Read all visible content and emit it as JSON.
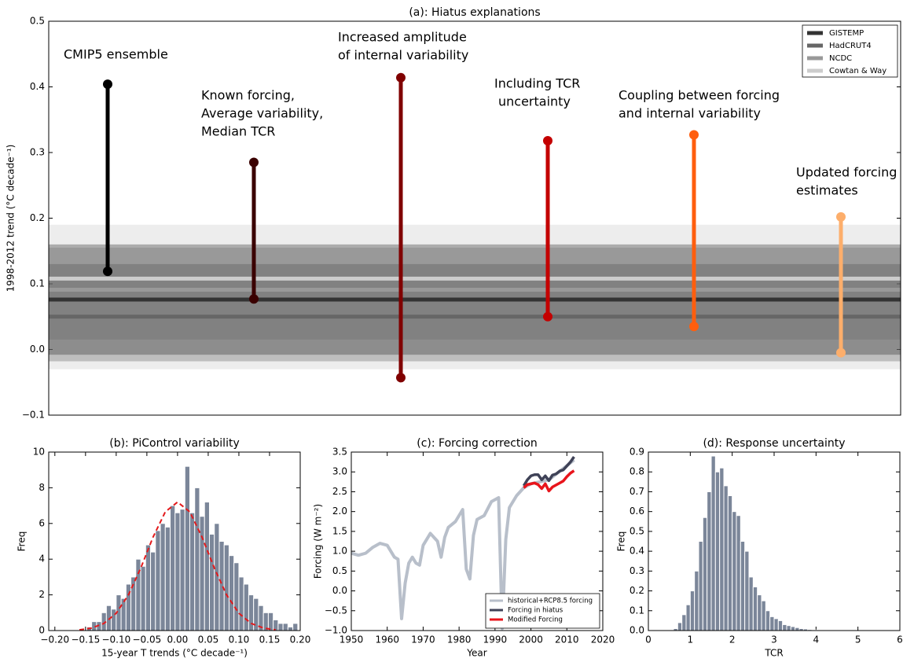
{
  "chart_data": [
    {
      "type": "dumbbell",
      "title": "(a): Hiatus explanations",
      "ylabel": "1998-2012 trend (°C decade⁻¹)",
      "ylim": [
        -0.1,
        0.5
      ],
      "yticks": [
        {
          "value": -0.1,
          "label": "−0.1"
        },
        {
          "value": 0,
          "label": "0.0"
        },
        0.1,
        0.2,
        0.3,
        0.4,
        0.5
      ],
      "labels": [
        [
          "CMIP5 ensemble"
        ],
        [
          "Known forcing,",
          "Average variability,",
          "Median TCR"
        ],
        [
          "Increased amplitude",
          "of internal variability"
        ],
        [
          "Including TCR",
          "uncertainty"
        ],
        [
          "Coupling between forcing",
          "and internal variability"
        ],
        [
          "Updated forcing",
          "estimates"
        ]
      ],
      "highs": [
        0.404,
        0.285,
        0.414,
        0.318,
        0.327,
        0.202
      ],
      "lows": [
        0.119,
        0.077,
        -0.043,
        0.05,
        0.035,
        -0.005
      ],
      "colors": [
        "#000000",
        "#3a0000",
        "#800000",
        "#c40000",
        "#ff5e0e",
        "#fdae6b"
      ],
      "observations": [
        {
          "name": "GISTEMP",
          "color": "#333333",
          "value": 0.076,
          "range": [
            -0.008,
            0.16
          ]
        },
        {
          "name": "HadCRUT4",
          "color": "#666666",
          "value": 0.05,
          "range": [
            -0.018,
            0.13
          ]
        },
        {
          "name": "NCDC",
          "color": "#999999",
          "value": 0.091,
          "range": [
            0.015,
            0.155
          ]
        },
        {
          "name": "Cowtan & Way",
          "color": "#cccccc",
          "value": 0.108,
          "range": [
            -0.03,
            0.19
          ]
        }
      ],
      "legend": "upper right"
    },
    {
      "type": "histogram",
      "title": "(b): PiControl variability",
      "xlabel": "15-year T trends (°C decade⁻¹)",
      "ylabel": "Freq",
      "xlim": [
        -0.21,
        0.2
      ],
      "ylim": [
        0,
        10
      ],
      "xticks": [
        {
          "value": -0.2,
          "label": "−0.20"
        },
        {
          "value": -0.15,
          "label": "−0.15"
        },
        {
          "value": -0.1,
          "label": "−0.10"
        },
        {
          "value": -0.05,
          "label": "−0.05"
        },
        {
          "value": 0,
          "label": "0.00"
        },
        {
          "value": 0.05,
          "label": "0.05"
        },
        {
          "value": 0.1,
          "label": "0.10"
        },
        {
          "value": 0.15,
          "label": "0.15"
        },
        {
          "value": 0.2,
          "label": "0.20"
        }
      ],
      "yticks": [
        0,
        2,
        4,
        6,
        8,
        10
      ],
      "bins": [
        -0.172,
        -0.164,
        -0.156,
        -0.148,
        -0.14,
        -0.132,
        -0.124,
        -0.116,
        -0.108,
        -0.1,
        -0.092,
        -0.084,
        -0.076,
        -0.068,
        -0.06,
        -0.052,
        -0.044,
        -0.036,
        -0.028,
        -0.02,
        -0.012,
        -0.004,
        0.004,
        0.012,
        0.02,
        0.028,
        0.036,
        0.044,
        0.052,
        0.06,
        0.068,
        0.076,
        0.084,
        0.092,
        0.1,
        0.108,
        0.116,
        0.124,
        0.132,
        0.14,
        0.148,
        0.156,
        0.164,
        0.172,
        0.18,
        0.188,
        0.196
      ],
      "values": [
        0,
        0,
        0,
        0.2,
        0.5,
        0.5,
        1,
        1.4,
        1.2,
        2,
        1.8,
        2.6,
        3,
        4,
        3.6,
        4.8,
        4.4,
        5.6,
        6,
        5.8,
        7,
        6.6,
        6.8,
        9.2,
        6.6,
        8,
        6.4,
        7.2,
        5.4,
        6,
        5,
        4.8,
        4.2,
        3.8,
        3,
        2.6,
        2,
        1.8,
        1.4,
        1,
        1,
        0.6,
        0.4,
        0.4,
        0.2,
        0.4
      ],
      "color": "#7b8699",
      "fit": {
        "color": "#e31a1c",
        "x": [
          -0.16,
          -0.14,
          -0.12,
          -0.1,
          -0.08,
          -0.06,
          -0.04,
          -0.02,
          0,
          0.02,
          0.04,
          0.06,
          0.08,
          0.1,
          0.12,
          0.14,
          0.16
        ],
        "values": [
          0.04,
          0.14,
          0.4,
          0.97,
          2.0,
          3.5,
          5.23,
          6.65,
          7.2,
          6.65,
          5.23,
          3.5,
          2.0,
          0.97,
          0.4,
          0.14,
          0.04
        ]
      }
    },
    {
      "type": "line",
      "title": "(c): Forcing correction",
      "xlabel": "Year",
      "ylabel": "Forcing (W m⁻²)",
      "xlim": [
        1950,
        2020
      ],
      "ylim": [
        -1,
        3.5
      ],
      "xticks": [
        1950,
        1960,
        1970,
        1980,
        1990,
        2000,
        2010,
        2020
      ],
      "yticks": [
        {
          "value": -1,
          "label": "−1.0"
        },
        {
          "value": -0.5,
          "label": "−0.5"
        },
        {
          "value": 0,
          "label": "0.0"
        },
        0.5,
        {
          "value": 1,
          "label": "1.0"
        },
        1.5,
        {
          "value": 2,
          "label": "2.0"
        },
        2.5,
        {
          "value": 3,
          "label": "3.0"
        },
        3.5
      ],
      "series": [
        {
          "name": "historical+RCP8.5 forcing",
          "color": "#b8bfca",
          "x": [
            1950,
            1952,
            1954,
            1956,
            1958,
            1960,
            1962,
            1963,
            1964,
            1965,
            1966,
            1967,
            1968,
            1969,
            1970,
            1972,
            1974,
            1975,
            1976,
            1977,
            1979,
            1981,
            1982,
            1983,
            1984,
            1985,
            1987,
            1989,
            1991,
            1992,
            1993,
            1994,
            1996,
            1998,
            2000,
            2005,
            2012
          ],
          "values": [
            0.95,
            0.9,
            0.95,
            1.1,
            1.2,
            1.15,
            0.85,
            0.8,
            -0.7,
            0.2,
            0.7,
            0.85,
            0.7,
            0.65,
            1.15,
            1.45,
            1.25,
            0.85,
            1.35,
            1.6,
            1.75,
            2.05,
            0.55,
            0.3,
            1.4,
            1.8,
            1.9,
            2.25,
            2.35,
            -0.95,
            1.3,
            2.1,
            2.4,
            2.6,
            2.7,
            2.8,
            3.3
          ]
        },
        {
          "name": "Forcing in hiatus",
          "color": "#3f4257",
          "x": [
            1998,
            1999,
            2000,
            2001,
            2002,
            2003,
            2004,
            2005,
            2006,
            2007,
            2008,
            2009,
            2010,
            2011,
            2012
          ],
          "values": [
            2.65,
            2.8,
            2.9,
            2.93,
            2.93,
            2.8,
            2.9,
            2.78,
            2.92,
            2.95,
            3.02,
            3.05,
            3.15,
            3.25,
            3.38
          ]
        },
        {
          "name": "Modified Forcing",
          "color": "#e8141b",
          "x": [
            1998,
            1999,
            2000,
            2001,
            2002,
            2003,
            2004,
            2005,
            2006,
            2007,
            2008,
            2009,
            2010,
            2011,
            2012
          ],
          "values": [
            2.6,
            2.68,
            2.7,
            2.72,
            2.68,
            2.58,
            2.7,
            2.52,
            2.62,
            2.67,
            2.72,
            2.77,
            2.88,
            2.97,
            3.03
          ]
        }
      ],
      "legend": "lower right"
    },
    {
      "type": "histogram",
      "title": "(d): Response uncertainty",
      "xlabel": "TCR",
      "ylabel": "Freq",
      "xlim": [
        0,
        6
      ],
      "ylim": [
        0,
        0.9
      ],
      "xticks": [
        0,
        1,
        2,
        3,
        4,
        5,
        6
      ],
      "yticks": [
        {
          "value": 0,
          "label": "0.0"
        },
        0.1,
        0.2,
        0.3,
        0.4,
        0.5,
        0.6,
        0.7,
        0.8,
        0.9
      ],
      "bins": [
        0.6,
        0.7,
        0.8,
        0.9,
        1.0,
        1.1,
        1.2,
        1.3,
        1.4,
        1.5,
        1.6,
        1.7,
        1.8,
        1.9,
        2.0,
        2.1,
        2.2,
        2.3,
        2.4,
        2.5,
        2.6,
        2.7,
        2.8,
        2.9,
        3.0,
        3.1,
        3.2,
        3.3,
        3.4,
        3.5,
        3.6,
        3.7,
        3.8,
        3.9,
        4.0
      ],
      "values": [
        0.01,
        0.04,
        0.08,
        0.13,
        0.2,
        0.3,
        0.45,
        0.57,
        0.7,
        0.88,
        0.8,
        0.82,
        0.73,
        0.68,
        0.6,
        0.58,
        0.45,
        0.4,
        0.27,
        0.22,
        0.18,
        0.15,
        0.1,
        0.07,
        0.06,
        0.05,
        0.03,
        0.025,
        0.02,
        0.015,
        0.01,
        0.008,
        0.005,
        0.003
      ],
      "color": "#7b8699"
    }
  ]
}
